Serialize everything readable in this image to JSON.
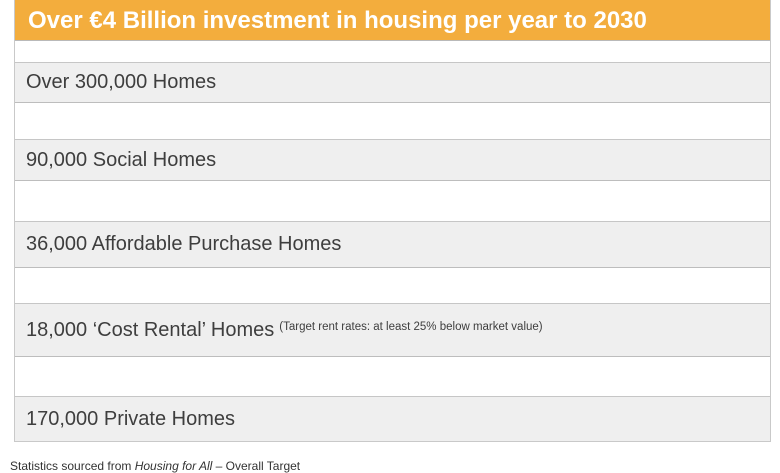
{
  "header": {
    "title": "Over €4 Billion investment in housing per year to 2030"
  },
  "rows": [
    {
      "text": "Over 300,000 Homes",
      "note": ""
    },
    {
      "text": "90,000 Social Homes",
      "note": ""
    },
    {
      "text": "36,000 Affordable Purchase Homes",
      "note": ""
    },
    {
      "text": "18,000 ‘Cost Rental’ Homes",
      "note": "(Target rent rates: at least 25% below market value)"
    },
    {
      "text": "170,000 Private Homes",
      "note": ""
    }
  ],
  "footer": {
    "prefix": "Statistics sourced from ",
    "source": "Housing for All",
    "suffix": " – Overall Target"
  }
}
